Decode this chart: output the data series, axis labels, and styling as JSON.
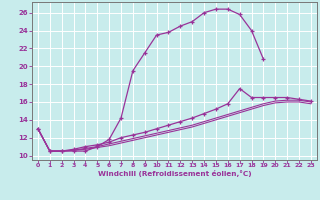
{
  "background_color": "#c8ecec",
  "grid_color": "#ffffff",
  "line_color": "#993399",
  "xlabel": "Windchill (Refroidissement éolien,°C)",
  "ylabel_ticks": [
    10,
    12,
    14,
    16,
    18,
    20,
    22,
    24,
    26
  ],
  "xticks": [
    0,
    1,
    2,
    3,
    4,
    5,
    6,
    7,
    8,
    9,
    10,
    11,
    12,
    13,
    14,
    15,
    16,
    17,
    18,
    19,
    20,
    21,
    22,
    23
  ],
  "xlim": [
    -0.5,
    23.5
  ],
  "ylim": [
    9.5,
    27.2
  ],
  "curve1_x": [
    0,
    1,
    2,
    3,
    4,
    5,
    6,
    7,
    8,
    9,
    10,
    11,
    12,
    13,
    14,
    15,
    16,
    17,
    18,
    19
  ],
  "curve1_y": [
    13.0,
    10.5,
    10.5,
    10.5,
    10.5,
    11.0,
    11.8,
    14.2,
    19.5,
    21.5,
    23.5,
    23.8,
    24.5,
    25.0,
    26.0,
    26.4,
    26.4,
    25.8,
    24.0,
    20.8
  ],
  "curve1_markers": true,
  "curve2_x": [
    0,
    1,
    2,
    3,
    4,
    5,
    6,
    7,
    8,
    9,
    10,
    11,
    12,
    13,
    14,
    15,
    16,
    17,
    18,
    19,
    20,
    21,
    22,
    23
  ],
  "curve2_y": [
    13.0,
    10.5,
    10.5,
    10.7,
    11.0,
    11.2,
    11.5,
    12.0,
    12.3,
    12.6,
    13.0,
    13.4,
    13.8,
    14.2,
    14.7,
    15.2,
    15.8,
    17.5,
    16.5,
    16.5,
    16.5,
    16.5,
    16.3,
    16.1
  ],
  "curve2_markers": true,
  "curve3_x": [
    0,
    1,
    2,
    3,
    4,
    5,
    6,
    7,
    8,
    9,
    10,
    11,
    12,
    13,
    14,
    15,
    16,
    17,
    18,
    19,
    20,
    21,
    22,
    23
  ],
  "curve3_y": [
    13.0,
    10.5,
    10.5,
    10.6,
    10.8,
    11.0,
    11.3,
    11.6,
    11.9,
    12.2,
    12.5,
    12.8,
    13.1,
    13.4,
    13.8,
    14.2,
    14.6,
    15.0,
    15.4,
    15.8,
    16.1,
    16.2,
    16.2,
    16.0
  ],
  "curve3_markers": false,
  "curve4_x": [
    0,
    1,
    2,
    3,
    4,
    5,
    6,
    7,
    8,
    9,
    10,
    11,
    12,
    13,
    14,
    15,
    16,
    17,
    18,
    19,
    20,
    21,
    22,
    23
  ],
  "curve4_y": [
    13.0,
    10.5,
    10.5,
    10.6,
    10.7,
    10.9,
    11.1,
    11.4,
    11.7,
    12.0,
    12.3,
    12.6,
    12.9,
    13.2,
    13.6,
    14.0,
    14.4,
    14.8,
    15.2,
    15.6,
    15.9,
    16.0,
    16.0,
    15.8
  ],
  "curve4_markers": false
}
